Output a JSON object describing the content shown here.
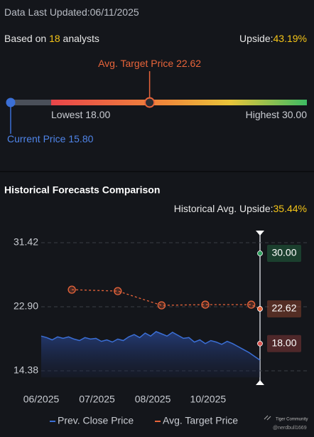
{
  "header": {
    "updated_label": "Data Last Updated:",
    "updated": "06/11/2025"
  },
  "summary": {
    "based_prefix": "Based on",
    "analysts": 18,
    "based_suffix": "analysts",
    "upside_label": "Upside:",
    "upside": "43.19%"
  },
  "range": {
    "avg_label": "Avg. Target Price",
    "avg": "22.62",
    "lowest_label": "Lowest",
    "lowest": "18.00",
    "highest_label": "Highest",
    "highest": "30.00",
    "current_label": "Current Price",
    "current": "15.80"
  },
  "section": {
    "title": "Historical Forecasts Comparison",
    "upside_label": "Historical Avg. Upside:",
    "upside": "35.44%"
  },
  "watermark": {
    "brand": "Tiger Community",
    "handle": "@nerdbull1669"
  },
  "chart_data": {
    "type": "line",
    "xlim": [
      0,
      40
    ],
    "xticks": [
      {
        "value": 0,
        "label": "06/2025"
      },
      {
        "value": 10.2,
        "label": "07/2025"
      },
      {
        "value": 20.4,
        "label": "08/2025"
      },
      {
        "value": 30.5,
        "label": "10/2025"
      }
    ],
    "ylim": [
      13.5,
      32.3
    ],
    "yticks": [
      31.42,
      {
        "value": 22.9,
        "label": "22.90"
      },
      14.38
    ],
    "grid": true,
    "series": [
      {
        "name": "Prev. Close Price",
        "color": "#3b6fd6",
        "x": [
          0,
          1,
          2,
          3,
          4,
          5,
          6,
          7,
          8,
          9,
          10,
          11,
          12,
          13,
          14,
          15,
          16,
          17,
          18,
          19,
          20,
          21,
          22,
          23,
          24,
          25,
          26,
          27,
          28,
          29,
          30,
          31,
          32,
          33,
          34,
          35,
          36,
          37,
          38,
          39,
          40
        ],
        "values": [
          19.0,
          18.8,
          18.5,
          18.9,
          18.7,
          18.9,
          18.6,
          18.4,
          18.8,
          18.6,
          18.7,
          18.3,
          18.5,
          18.2,
          18.6,
          18.4,
          18.9,
          19.2,
          18.8,
          19.4,
          19.0,
          19.6,
          19.3,
          19.0,
          19.5,
          19.1,
          18.7,
          18.8,
          18.2,
          18.5,
          18.0,
          18.4,
          18.2,
          17.9,
          18.3,
          18.0,
          17.6,
          17.2,
          16.8,
          16.3,
          15.8
        ]
      },
      {
        "name": "Avg. Target Price",
        "color": "#e8643a",
        "x": [
          5.6,
          14,
          22,
          30,
          38.4,
          40
        ],
        "values": [
          25.17,
          24.98,
          23.09,
          23.18,
          23.18,
          22.62
        ]
      }
    ],
    "end_labels": [
      {
        "value": 30,
        "label": "30.00",
        "color": "#2f9e5e"
      },
      {
        "value": 22.62,
        "label": "22.62",
        "color": "#e8643a"
      },
      {
        "value": 18,
        "label": "18.00",
        "color": "#d9534f"
      }
    ]
  }
}
